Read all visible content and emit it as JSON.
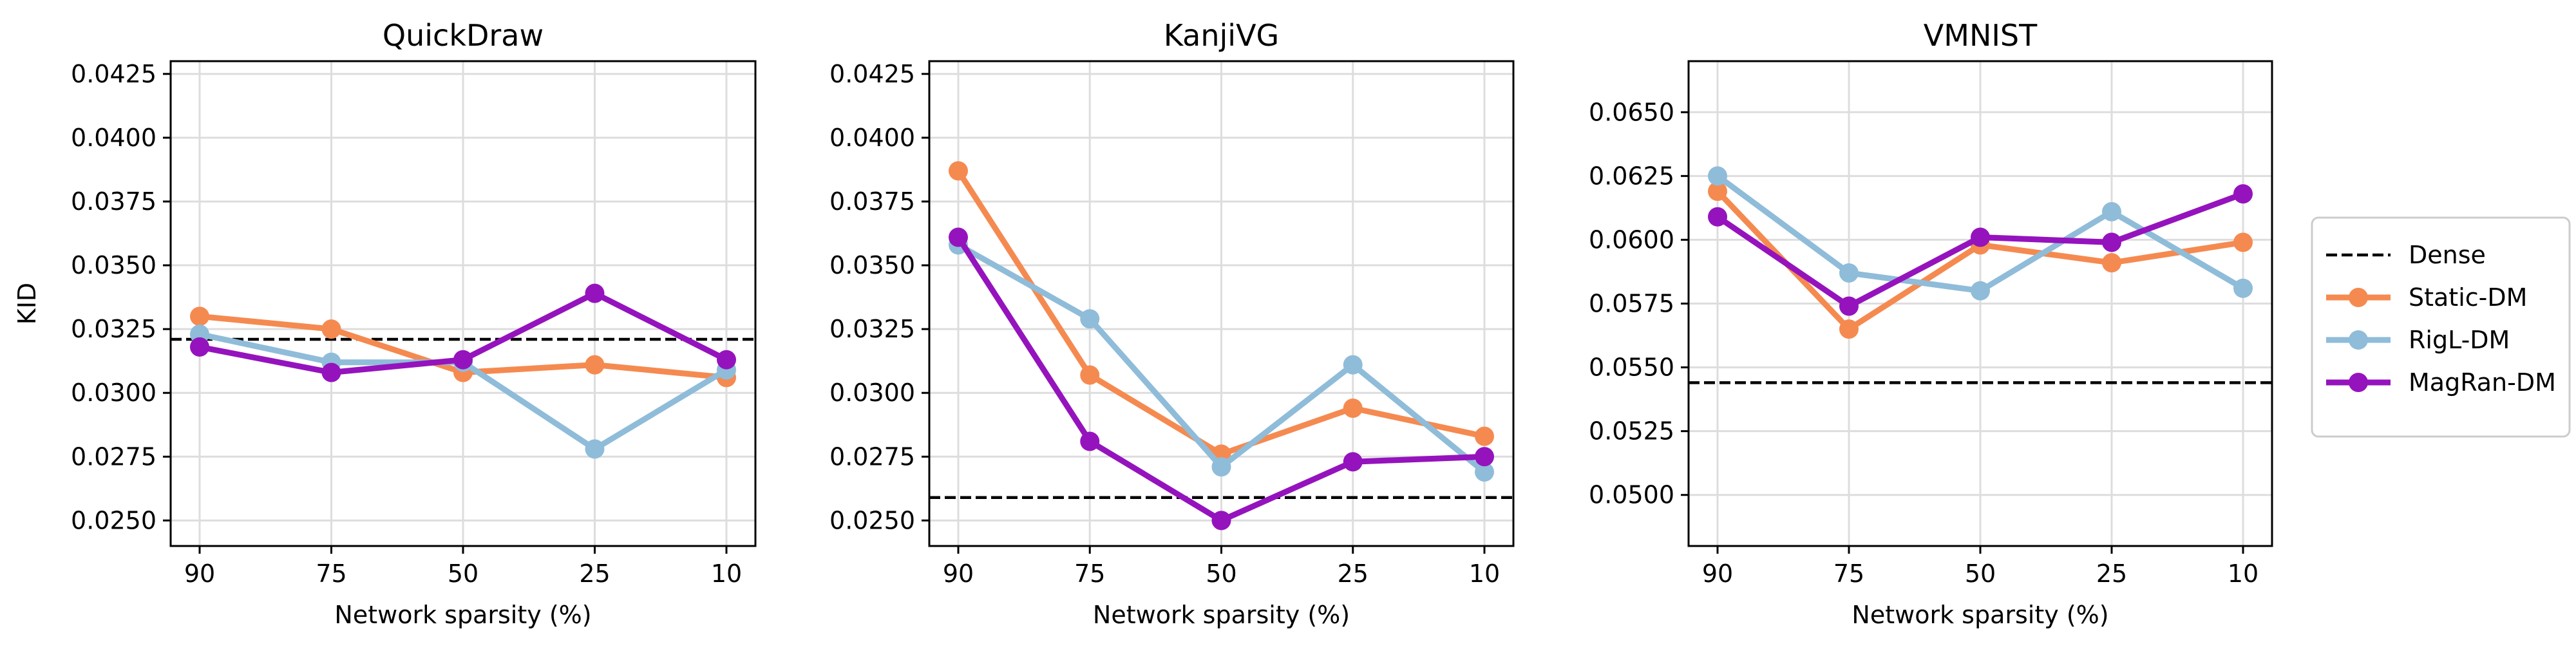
{
  "chart_data": [
    {
      "type": "line",
      "title": "QuickDraw",
      "xlabel": "Network sparsity (%)",
      "ylabel": "KID",
      "categories": [
        "90",
        "75",
        "50",
        "25",
        "10"
      ],
      "ylim": [
        0.024,
        0.043
      ],
      "yticks": [
        "0.0250",
        "0.0275",
        "0.0300",
        "0.0325",
        "0.0350",
        "0.0375",
        "0.0400",
        "0.0425"
      ],
      "dense": 0.0321,
      "series": [
        {
          "name": "Static-DM",
          "values": [
            0.033,
            0.0325,
            0.0308,
            0.0311,
            0.0306
          ]
        },
        {
          "name": "RigL-DM",
          "values": [
            0.0323,
            0.0312,
            0.0312,
            0.0278,
            0.0309
          ]
        },
        {
          "name": "MagRan-DM",
          "values": [
            0.0318,
            0.0308,
            0.0313,
            0.0339,
            0.0313
          ]
        }
      ]
    },
    {
      "type": "line",
      "title": "KanjiVG",
      "xlabel": "Network sparsity (%)",
      "ylabel": "",
      "categories": [
        "90",
        "75",
        "50",
        "25",
        "10"
      ],
      "ylim": [
        0.024,
        0.043
      ],
      "yticks": [
        "0.0250",
        "0.0275",
        "0.0300",
        "0.0325",
        "0.0350",
        "0.0375",
        "0.0400",
        "0.0425"
      ],
      "dense": 0.0259,
      "series": [
        {
          "name": "Static-DM",
          "values": [
            0.0387,
            0.0307,
            0.0276,
            0.0294,
            0.0283
          ]
        },
        {
          "name": "RigL-DM",
          "values": [
            0.0358,
            0.0329,
            0.0271,
            0.0311,
            0.0269
          ]
        },
        {
          "name": "MagRan-DM",
          "values": [
            0.0361,
            0.0281,
            0.025,
            0.0273,
            0.0275
          ]
        }
      ]
    },
    {
      "type": "line",
      "title": "VMNIST",
      "xlabel": "Network sparsity (%)",
      "ylabel": "",
      "categories": [
        "90",
        "75",
        "50",
        "25",
        "10"
      ],
      "ylim": [
        0.048,
        0.067
      ],
      "yticks": [
        "0.0500",
        "0.0525",
        "0.0550",
        "0.0575",
        "0.0600",
        "0.0625",
        "0.0650"
      ],
      "dense": 0.0544,
      "series": [
        {
          "name": "Static-DM",
          "values": [
            0.0619,
            0.0565,
            0.0598,
            0.0591,
            0.0599
          ]
        },
        {
          "name": "RigL-DM",
          "values": [
            0.0625,
            0.0587,
            0.058,
            0.0611,
            0.0581
          ]
        },
        {
          "name": "MagRan-DM",
          "values": [
            0.0609,
            0.0574,
            0.0601,
            0.0599,
            0.0618
          ]
        }
      ]
    }
  ],
  "legend": {
    "placement": "right",
    "items": [
      "Dense",
      "Static-DM",
      "RigL-DM",
      "MagRan-DM"
    ]
  },
  "colors": {
    "Static-DM": "#f58a50",
    "RigL-DM": "#8fbcd9",
    "MagRan-DM": "#9513bd",
    "Dense": "#000000",
    "grid": "#dddddd"
  },
  "grid": true
}
